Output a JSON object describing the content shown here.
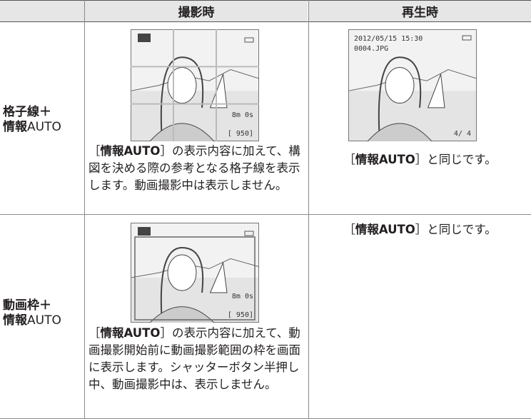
{
  "table": {
    "header": [
      "撮影時",
      "再生時"
    ],
    "rows": [
      {
        "label": [
          "格子線＋",
          "情報",
          "AUTO"
        ],
        "shooting": {
          "screen": {
            "movie_time": "8m 0s",
            "remaining": "[ 950]"
          },
          "text_parts": [
            "［",
            "情報AUTO",
            "］の表示内容に加えて、構図を決める際の参考となる格子線を表示します。動画撮影中は表示しません。"
          ]
        },
        "playback": {
          "screen": {
            "datetime": "2012/05/15 15:30",
            "file": "0004.JPG",
            "frame": "4/   4"
          },
          "text_parts": [
            "［",
            "情報AUTO",
            "］と同じです。"
          ]
        }
      },
      {
        "label": [
          "動画枠＋",
          "情報",
          "AUTO"
        ],
        "shooting": {
          "screen": {
            "movie_time": "8m 0s",
            "remaining": "[ 950]"
          },
          "text_parts": [
            "［",
            "情報AUTO",
            "］の表示内容に加えて、動画撮影開始前に動画撮影範囲の枠を画面に表示します。シャッターボタン半押し中、動画撮影中は、表示しません。"
          ]
        },
        "playback": {
          "text_parts": [
            "［",
            "情報AUTO",
            "］と同じです。"
          ]
        }
      }
    ]
  }
}
